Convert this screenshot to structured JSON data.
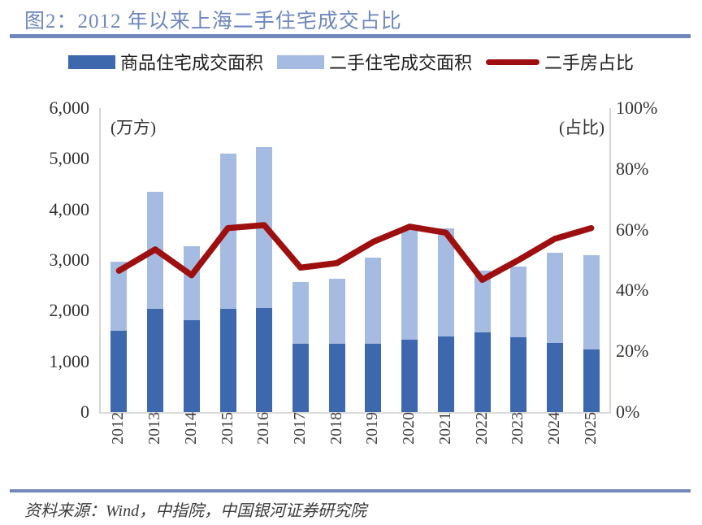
{
  "title": "图2：2012 年以来上海二手住宅成交占比",
  "source": "资料来源：Wind，中指院，中国银河证券研究院",
  "colors": {
    "title_blue": "#6E86C0",
    "rule_blue": "#7288BB",
    "new_home_bar": "#3E68AE",
    "secondhand_bar": "#A6BBE2",
    "ratio_line": "#9E1010",
    "axis_gray": "#D5D5D5",
    "tick_text": "#333333"
  },
  "legend": [
    {
      "label": "商品住宅成交面积",
      "type": "bar",
      "color": "#3E68AE"
    },
    {
      "label": "二手住宅成交面积",
      "type": "bar",
      "color": "#A6BBE2"
    },
    {
      "label": "二手房占比",
      "type": "line",
      "color": "#9E1010"
    }
  ],
  "chart_data": {
    "type": "bar",
    "subtype": "stacked-bars-with-line",
    "categories": [
      "2012",
      "2013",
      "2014",
      "2015",
      "2016",
      "2017",
      "2018",
      "2019",
      "2020",
      "2021",
      "2022",
      "2023",
      "2024",
      "2025"
    ],
    "series": [
      {
        "name": "商品住宅成交面积",
        "type": "bar-stack-bottom",
        "axis": "left",
        "color": "#3E68AE",
        "values": [
          1600,
          2030,
          1810,
          2040,
          2050,
          1350,
          1340,
          1350,
          1430,
          1500,
          1580,
          1470,
          1360,
          1240
        ]
      },
      {
        "name": "二手住宅成交面积",
        "type": "bar-stack-top",
        "axis": "left",
        "color": "#A6BBE2",
        "values": [
          1370,
          2310,
          1460,
          3060,
          3180,
          1220,
          1290,
          1700,
          2220,
          2130,
          1210,
          1400,
          1780,
          1850
        ]
      },
      {
        "name": "二手房占比",
        "type": "line",
        "axis": "right",
        "color": "#9E1010",
        "values": [
          46.5,
          53.5,
          45,
          60.5,
          61.5,
          47.5,
          49,
          56,
          61,
          59,
          43.5,
          50,
          57,
          60.5
        ]
      }
    ],
    "left_axis": {
      "unit_label": "(万方)",
      "min": 0,
      "max": 6000,
      "ticks": [
        "6,000",
        "5,000",
        "4,000",
        "3,000",
        "2,000",
        "1,000",
        "0"
      ]
    },
    "right_axis": {
      "unit_label": "(占比)",
      "min": 0,
      "max": 100,
      "ticks": [
        "100%",
        "80%",
        "60%",
        "40%",
        "20%",
        "0%"
      ]
    },
    "grid": false,
    "legend_position": "top"
  }
}
